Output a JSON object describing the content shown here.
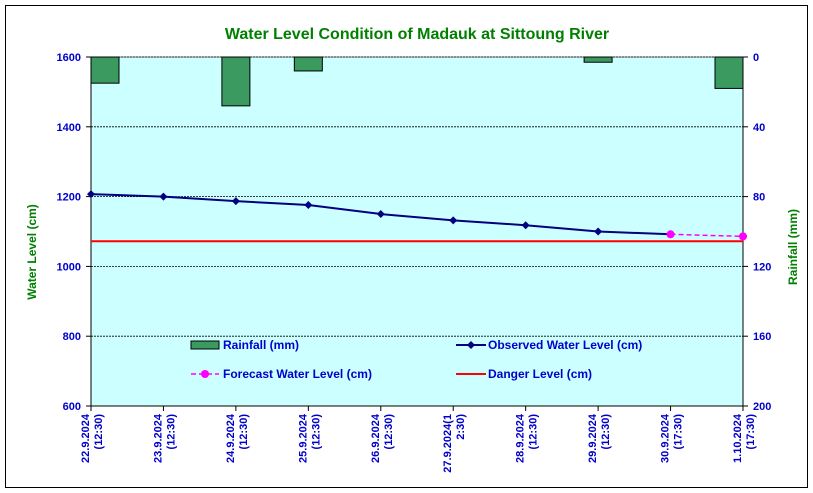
{
  "chart_data": {
    "type": "line",
    "title": "Water Level Condition of Madauk at Sittoung River",
    "ylabel": "Water Level (cm)",
    "y2label": "Rainfall (mm)",
    "ylim": [
      600,
      1600
    ],
    "y2lim": [
      200,
      0
    ],
    "yticks": [
      600,
      800,
      1000,
      1200,
      1400,
      1600
    ],
    "y2ticks": [
      0,
      40,
      80,
      120,
      160,
      200
    ],
    "grid": true,
    "categories": [
      [
        "22.9.2024",
        "(12:30)"
      ],
      [
        "23.9.2024",
        "(12:30)"
      ],
      [
        "24.9.2024",
        "(12:30)"
      ],
      [
        "25.9.2024",
        "(12:30)"
      ],
      [
        "26.9.2024",
        "(12:30)"
      ],
      [
        "27.9.2024(1",
        "2:30)"
      ],
      [
        "28.9.2024",
        "(12:30)"
      ],
      [
        "29.9.2024",
        "(12:30)"
      ],
      [
        "30.9.2024",
        "(17:30)"
      ],
      [
        "1.10.2024",
        "(17:30)"
      ]
    ],
    "series": [
      {
        "name": "Rainfall (mm)",
        "kind": "bar",
        "axis": "right",
        "color": "#3a9a60",
        "values": [
          15,
          null,
          28,
          8,
          null,
          null,
          null,
          3,
          null,
          18
        ]
      },
      {
        "name": "Observed Water Level (cm)",
        "kind": "line",
        "axis": "left",
        "color": "#000080",
        "values": [
          1207,
          1200,
          1187,
          1176,
          1150,
          1132,
          1118,
          1100,
          1092,
          null
        ]
      },
      {
        "name": "Forecast Water Level (cm)",
        "kind": "dashed-line",
        "axis": "left",
        "color": "#ff00ff",
        "values": [
          null,
          null,
          null,
          null,
          null,
          null,
          null,
          null,
          1092,
          1086
        ]
      },
      {
        "name": "Danger Level (cm)",
        "kind": "hline",
        "axis": "left",
        "color": "#ff0000",
        "value": 1072
      }
    ],
    "legend": "inside-bottom",
    "colors": {
      "plot_bg": "#ccffff",
      "title": "#008000",
      "axis_label": "#008000",
      "tick": "#0000cc"
    }
  }
}
